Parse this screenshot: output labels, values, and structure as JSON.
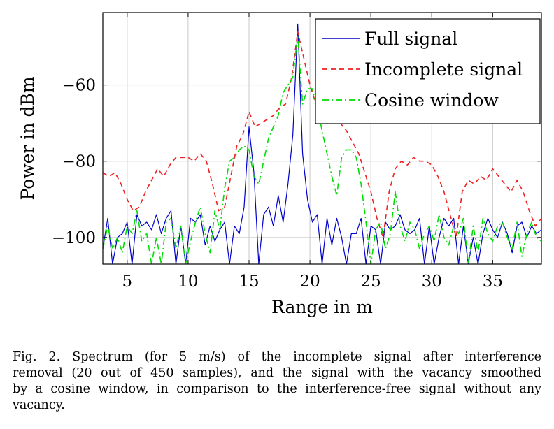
{
  "chart_data": {
    "type": "line",
    "xlabel": "Range in m",
    "ylabel": "Power in dBm",
    "xlim": [
      3,
      39
    ],
    "ylim": [
      -107,
      -41
    ],
    "xticks": [
      5,
      10,
      15,
      20,
      25,
      30,
      35
    ],
    "yticks": [
      -100,
      -80,
      -60
    ],
    "grid": true,
    "legend_position": "top-right",
    "series": [
      {
        "name": "Full signal",
        "color": "#0000cc",
        "dash": "none",
        "x": [
          3,
          3.4,
          3.8,
          4.2,
          4.6,
          5,
          5.4,
          5.8,
          6.2,
          6.6,
          7,
          7.4,
          7.8,
          8.2,
          8.6,
          9,
          9.4,
          9.8,
          10.2,
          10.6,
          11,
          11.4,
          11.8,
          12.2,
          12.6,
          13,
          13.4,
          13.8,
          14.2,
          14.6,
          15,
          15.4,
          15.8,
          16.2,
          16.6,
          17,
          17.4,
          17.8,
          18.2,
          18.6,
          19,
          19.4,
          19.8,
          20.2,
          20.6,
          21,
          21.4,
          21.8,
          22.2,
          22.6,
          23,
          23.4,
          23.8,
          24.2,
          24.6,
          25,
          25.4,
          25.8,
          26.2,
          26.6,
          27,
          27.4,
          27.8,
          28.2,
          28.6,
          29,
          29.4,
          29.8,
          30.2,
          30.6,
          31,
          31.4,
          31.8,
          32.2,
          32.6,
          33,
          33.4,
          33.8,
          34.2,
          34.6,
          35,
          35.4,
          35.8,
          36.2,
          36.6,
          37,
          37.4,
          37.8,
          38.2,
          38.6,
          39
        ],
        "values": [
          -103,
          -95,
          -107,
          -100,
          -99,
          -96,
          -107,
          -94,
          -97,
          -96,
          -98,
          -94,
          -99,
          -95,
          -93,
          -107,
          -97,
          -107,
          -95,
          -96,
          -94,
          -102,
          -97,
          -101,
          -98,
          -96,
          -107,
          -97,
          -99,
          -92,
          -71,
          -83,
          -107,
          -94,
          -92,
          -97,
          -89,
          -96,
          -86,
          -73,
          -44,
          -78,
          -90,
          -96,
          -94,
          -107,
          -95,
          -102,
          -95,
          -100,
          -107,
          -99,
          -99,
          -95,
          -107,
          -97,
          -98,
          -107,
          -96,
          -98,
          -97,
          -94,
          -98,
          -99,
          -98,
          -95,
          -107,
          -97,
          -107,
          -100,
          -95,
          -97,
          -95,
          -107,
          -97,
          -107,
          -100,
          -107,
          -99,
          -95,
          -98,
          -100,
          -96,
          -99,
          -104,
          -97,
          -96,
          -100,
          -97,
          -99,
          -98
        ]
      },
      {
        "name": "Incomplete signal",
        "color": "#ee2222",
        "dash": "7,5",
        "x": [
          3,
          3.5,
          4,
          4.5,
          5,
          5.5,
          6,
          6.5,
          7,
          7.5,
          8,
          8.5,
          9,
          9.5,
          10,
          10.5,
          11,
          11.5,
          12,
          12.5,
          13,
          13.5,
          14,
          14.5,
          15,
          15.5,
          16,
          16.5,
          17,
          17.5,
          18,
          18.5,
          19,
          19.5,
          20,
          20.5,
          21,
          21.5,
          22,
          22.5,
          23,
          23.5,
          24,
          24.5,
          25,
          25.5,
          26,
          26.5,
          27,
          27.5,
          28,
          28.5,
          29,
          29.5,
          30,
          30.5,
          31,
          31.5,
          32,
          32.5,
          33,
          33.5,
          34,
          34.5,
          35,
          35.5,
          36,
          36.5,
          37,
          37.5,
          38,
          38.5,
          39
        ],
        "values": [
          -83,
          -84,
          -83,
          -86,
          -90,
          -93,
          -92,
          -88,
          -85,
          -82,
          -84,
          -81,
          -79,
          -79,
          -79,
          -80,
          -78,
          -80,
          -86,
          -93,
          -92,
          -84,
          -76,
          -73,
          -67,
          -71,
          -70,
          -69,
          -68,
          -66,
          -65,
          -58,
          -46,
          -53,
          -60,
          -65,
          -66,
          -66,
          -69,
          -70,
          -72,
          -75,
          -78,
          -83,
          -88,
          -95,
          -100,
          -88,
          -82,
          -80,
          -81,
          -79,
          -80,
          -80,
          -81,
          -84,
          -88,
          -94,
          -100,
          -88,
          -85,
          -86,
          -84,
          -85,
          -82,
          -84,
          -86,
          -88,
          -85,
          -88,
          -93,
          -97,
          -95
        ]
      },
      {
        "name": "Cosine window",
        "color": "#00dd00",
        "dash": "9,4,2,4",
        "x": [
          3,
          3.4,
          3.8,
          4.2,
          4.6,
          5,
          5.4,
          5.8,
          6.2,
          6.6,
          7,
          7.4,
          7.8,
          8.2,
          8.6,
          9,
          9.4,
          9.8,
          10.2,
          10.6,
          11,
          11.4,
          11.8,
          12.2,
          12.6,
          13,
          13.4,
          13.8,
          14.2,
          14.6,
          15,
          15.4,
          15.8,
          16.2,
          16.6,
          17,
          17.4,
          17.8,
          18.2,
          18.6,
          19,
          19.4,
          19.8,
          20.2,
          20.6,
          21,
          21.4,
          21.8,
          22.2,
          22.6,
          23,
          23.4,
          23.8,
          24.2,
          24.6,
          25,
          25.4,
          25.8,
          26.2,
          26.6,
          27,
          27.4,
          27.8,
          28.2,
          28.6,
          29,
          29.4,
          29.8,
          30.2,
          30.6,
          31,
          31.4,
          31.8,
          32.2,
          32.6,
          33,
          33.4,
          33.8,
          34.2,
          34.6,
          35,
          35.4,
          35.8,
          36.2,
          36.6,
          37,
          37.4,
          37.8,
          38.2,
          38.6,
          39
        ],
        "values": [
          -103,
          -97,
          -103,
          -100,
          -104,
          -97,
          -99,
          -93,
          -101,
          -99,
          -107,
          -100,
          -107,
          -96,
          -95,
          -103,
          -97,
          -107,
          -101,
          -96,
          -92,
          -99,
          -104,
          -93,
          -98,
          -87,
          -80,
          -79,
          -77,
          -76,
          -77,
          -84,
          -86,
          -80,
          -74,
          -71,
          -68,
          -62,
          -60,
          -58,
          -47,
          -65,
          -61,
          -61,
          -66,
          -72,
          -78,
          -84,
          -89,
          -79,
          -77,
          -77,
          -79,
          -86,
          -96,
          -107,
          -98,
          -96,
          -103,
          -99,
          -88,
          -97,
          -101,
          -96,
          -98,
          -103,
          -99,
          -97,
          -101,
          -94,
          -100,
          -102,
          -97,
          -99,
          -95,
          -107,
          -97,
          -104,
          -95,
          -99,
          -101,
          -97,
          -96,
          -100,
          -103,
          -96,
          -105,
          -99,
          -96,
          -100,
          -101
        ]
      }
    ]
  },
  "caption": {
    "lines": [
      "Fig. 2.   Spectrum (for 5 m/s) of the incomplete signal after interference",
      "removal (20 out of 450 samples), and the signal with the vacancy smoothed",
      "by a cosine window, in comparison to the interference-free signal without any",
      "vacancy."
    ]
  }
}
